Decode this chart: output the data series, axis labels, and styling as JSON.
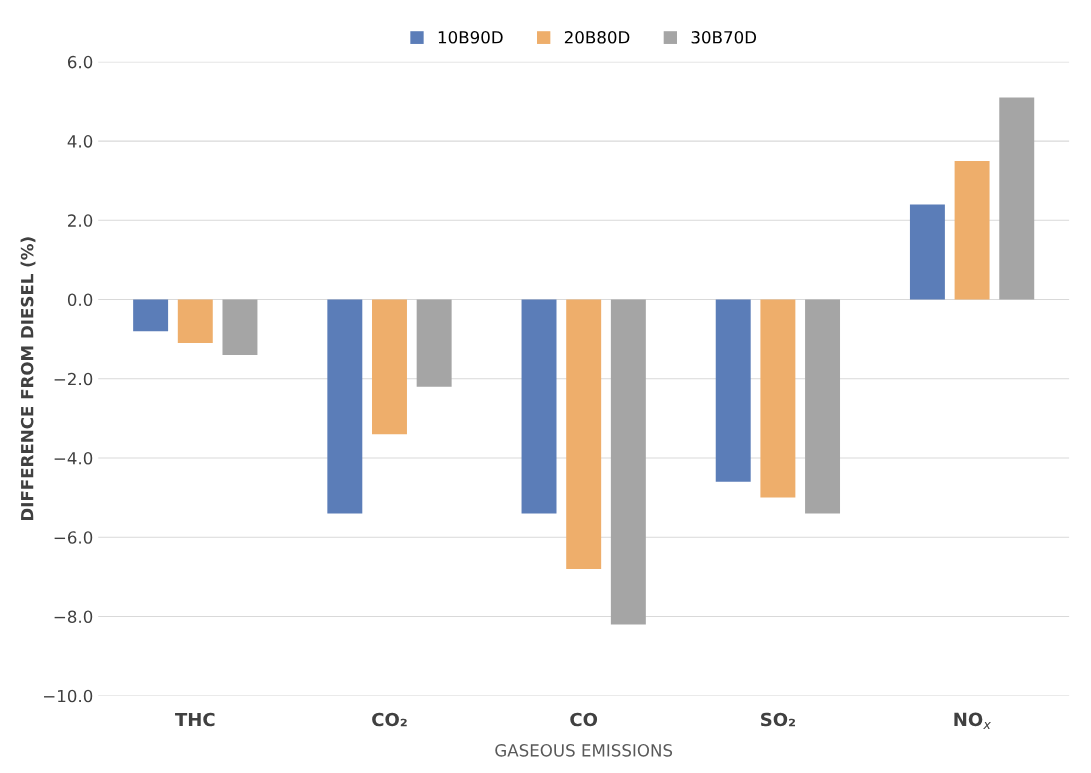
{
  "chart_data": {
    "type": "bar",
    "xlabel": "GASEOUS EMISSIONS",
    "ylabel": "DIFFERENCE FROM DIESEL (%)",
    "categories": [
      "THC",
      "CO₂",
      "CO",
      "SO₂",
      "NO$_{x}$"
    ],
    "series": [
      {
        "name": "10B90D",
        "color": "#5b7db8",
        "values": [
          -0.8,
          -5.4,
          -5.4,
          -4.6,
          2.4
        ]
      },
      {
        "name": "20B80D",
        "color": "#eeae6b",
        "values": [
          -1.1,
          -3.4,
          -6.8,
          -5.0,
          3.5
        ]
      },
      {
        "name": "30B70D",
        "color": "#a5a5a5",
        "values": [
          -1.4,
          -2.2,
          -8.2,
          -5.4,
          5.1
        ]
      }
    ],
    "ylim": [
      -10.0,
      6.0
    ],
    "yticks": [
      {
        "value": -10,
        "label": "−10.0"
      },
      {
        "value": -8,
        "label": "−8.0"
      },
      {
        "value": -6,
        "label": "−6.0"
      },
      {
        "value": -4,
        "label": "−4.0"
      },
      {
        "value": -2,
        "label": "−2.0"
      },
      {
        "value": 0,
        "label": "0.0"
      },
      {
        "value": 2,
        "label": "2.0"
      },
      {
        "value": 4,
        "label": "4.0"
      },
      {
        "value": 6,
        "label": "6.0"
      }
    ],
    "grid": "y",
    "legend": "top"
  }
}
